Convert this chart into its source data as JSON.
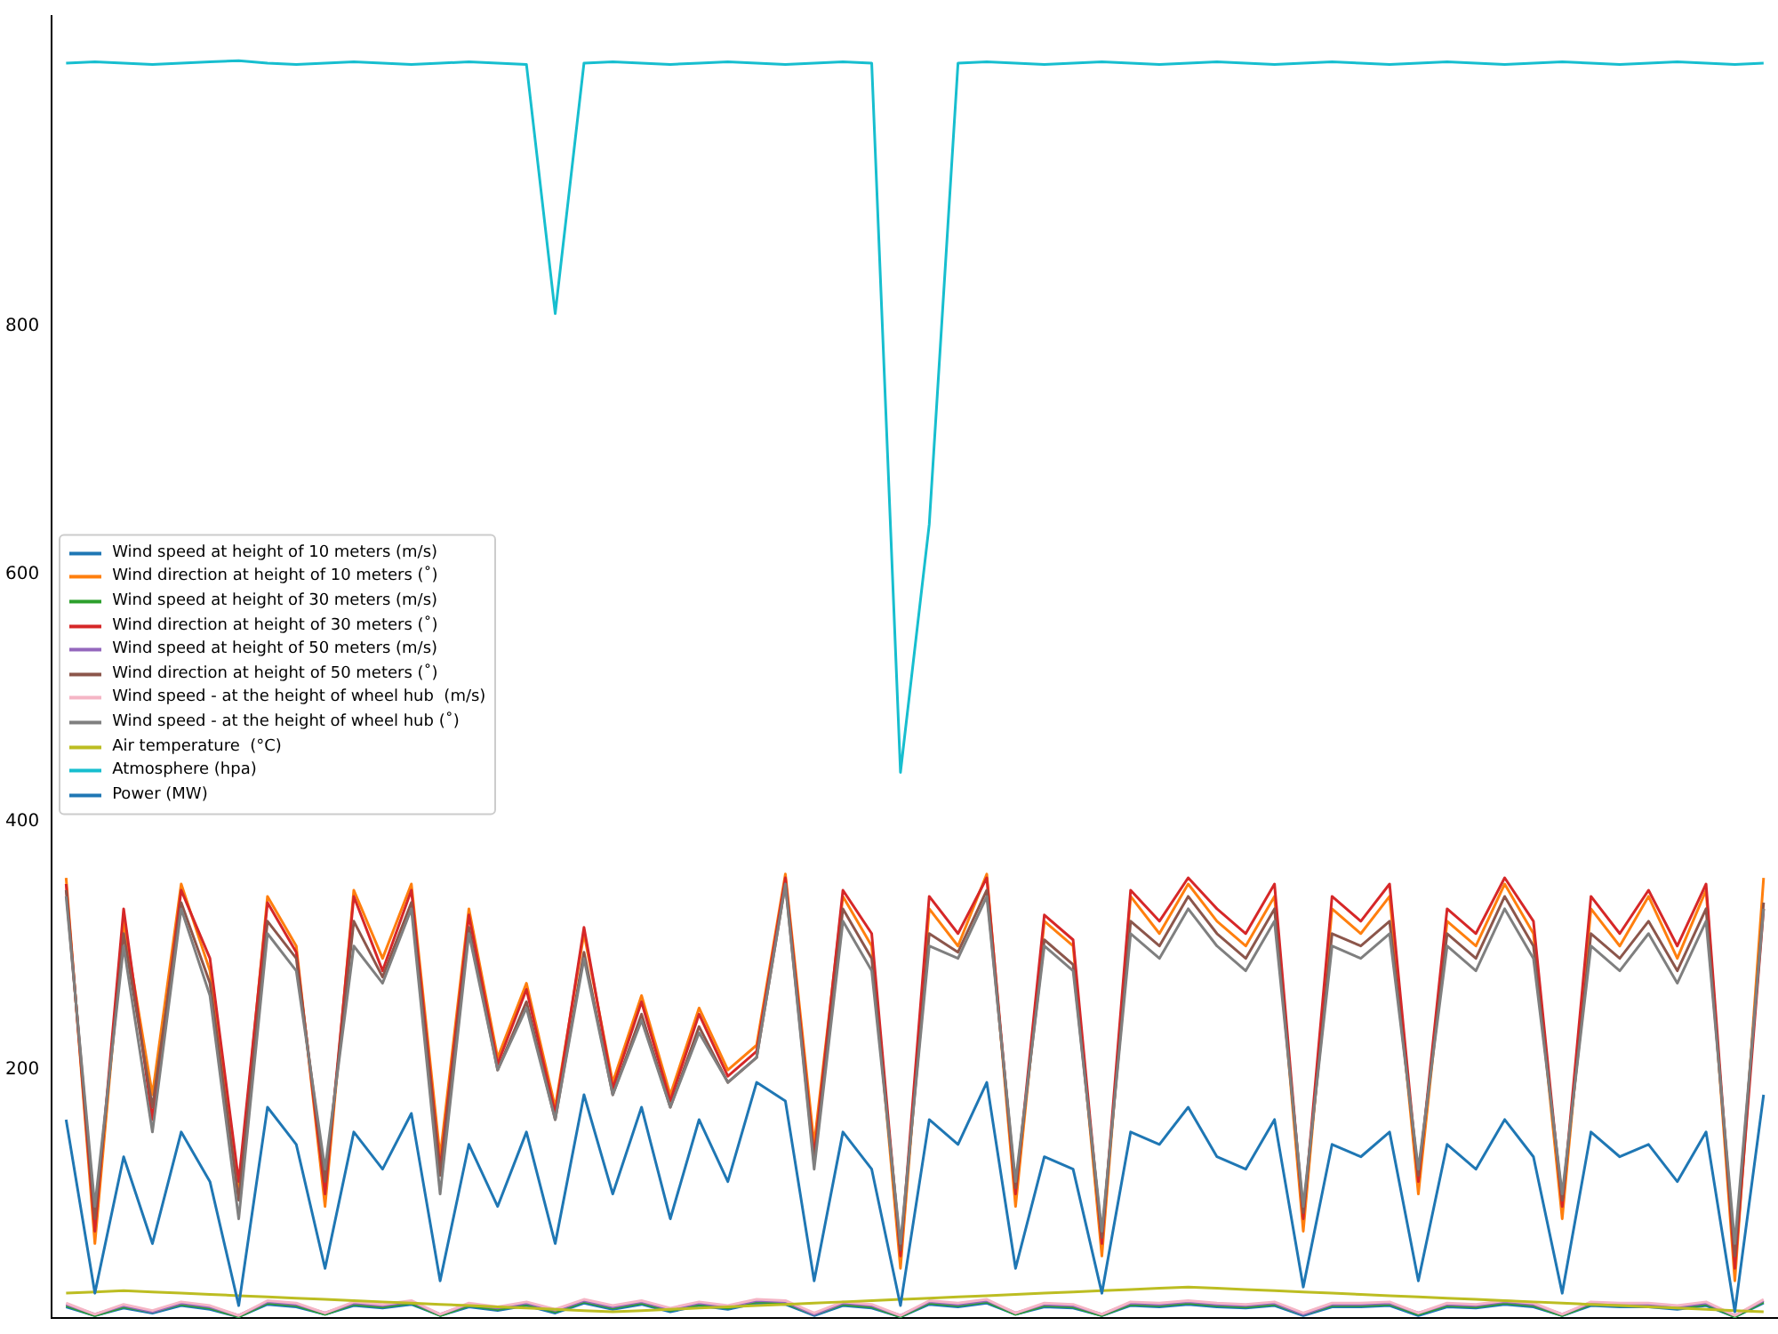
{
  "chart_data": {
    "type": "line",
    "categories": [
      null,
      null,
      null,
      null,
      null,
      null,
      null,
      null,
      null,
      null,
      null,
      null,
      null,
      null,
      null,
      null,
      null,
      null,
      null,
      null,
      null,
      null,
      null,
      null,
      null,
      null,
      null,
      null,
      null,
      null,
      null,
      null,
      null,
      null,
      null,
      null,
      null,
      null,
      null,
      null,
      null,
      null,
      null,
      null,
      null,
      null,
      null,
      null,
      null,
      null,
      null,
      null,
      null,
      null,
      null,
      null,
      null,
      null,
      null,
      null
    ],
    "ylim": [
      0,
      1050
    ],
    "yticks": [
      200,
      400,
      600,
      800
    ],
    "grid": false,
    "legend": "center left",
    "tick_labels": "y",
    "marker": "none",
    "line_style": "solid",
    "series": [
      {
        "name": "Wind speed at height of 10 meters (m/s)",
        "color": "#1f77b4",
        "values": [
          9,
          2,
          8,
          4,
          10,
          7,
          1,
          11,
          9,
          3,
          10,
          8,
          11,
          2,
          9,
          6,
          10,
          4,
          12,
          7,
          11,
          5,
          10,
          7,
          12,
          11,
          2,
          10,
          8,
          1,
          11,
          9,
          12,
          3,
          9,
          8,
          2,
          10,
          9,
          11,
          9,
          8,
          10,
          2,
          9,
          9,
          10,
          2,
          9,
          8,
          11,
          9,
          2,
          10,
          9,
          9,
          7,
          10,
          1,
          12
        ]
      },
      {
        "name": "Wind direction at height of 10 meters (˚)",
        "color": "#ff7f0e",
        "values": [
          355,
          60,
          320,
          180,
          350,
          280,
          100,
          340,
          300,
          90,
          345,
          290,
          350,
          130,
          330,
          210,
          270,
          170,
          310,
          190,
          260,
          180,
          250,
          200,
          220,
          358,
          140,
          340,
          300,
          40,
          330,
          300,
          358,
          90,
          320,
          300,
          50,
          340,
          310,
          350,
          320,
          300,
          340,
          70,
          330,
          310,
          340,
          100,
          320,
          300,
          350,
          310,
          80,
          330,
          300,
          340,
          290,
          345,
          30,
          355
        ]
      },
      {
        "name": "Wind speed at height of 30 meters (m/s)",
        "color": "#2ca02c",
        "values": [
          10,
          2,
          9,
          5,
          11,
          8,
          1,
          12,
          10,
          3,
          11,
          9,
          12,
          2,
          10,
          7,
          11,
          5,
          13,
          8,
          12,
          6,
          11,
          8,
          13,
          12,
          3,
          11,
          9,
          1,
          12,
          10,
          13,
          3,
          10,
          9,
          2,
          11,
          10,
          12,
          10,
          9,
          11,
          3,
          10,
          10,
          11,
          3,
          10,
          9,
          12,
          10,
          2,
          11,
          10,
          10,
          8,
          11,
          1,
          13
        ]
      },
      {
        "name": "Wind direction at height of 30 meters (˚)",
        "color": "#d62728",
        "values": [
          350,
          70,
          330,
          160,
          345,
          290,
          110,
          335,
          295,
          100,
          340,
          280,
          345,
          120,
          325,
          205,
          265,
          165,
          315,
          185,
          255,
          175,
          245,
          195,
          215,
          355,
          130,
          345,
          310,
          50,
          340,
          310,
          355,
          100,
          325,
          305,
          60,
          345,
          320,
          355,
          330,
          310,
          350,
          80,
          340,
          320,
          350,
          110,
          330,
          310,
          355,
          320,
          90,
          340,
          310,
          345,
          300,
          350,
          40,
          330
        ]
      },
      {
        "name": "Wind speed at height of 50 meters (m/s)",
        "color": "#9467bd",
        "values": [
          11,
          3,
          10,
          5,
          12,
          9,
          2,
          13,
          11,
          4,
          12,
          10,
          13,
          3,
          11,
          8,
          12,
          6,
          14,
          9,
          13,
          7,
          12,
          9,
          14,
          13,
          3,
          12,
          10,
          2,
          13,
          11,
          14,
          4,
          11,
          10,
          3,
          12,
          11,
          13,
          11,
          10,
          12,
          3,
          11,
          11,
          12,
          4,
          11,
          10,
          13,
          11,
          3,
          12,
          11,
          11,
          9,
          12,
          2,
          14
        ]
      },
      {
        "name": "Wind direction at height of 50 meters (˚)",
        "color": "#8c564b",
        "values": [
          345,
          80,
          310,
          170,
          335,
          270,
          95,
          320,
          290,
          110,
          320,
          275,
          335,
          115,
          315,
          200,
          255,
          160,
          295,
          180,
          245,
          170,
          235,
          190,
          210,
          350,
          125,
          330,
          290,
          55,
          310,
          295,
          345,
          105,
          305,
          285,
          65,
          320,
          300,
          340,
          310,
          290,
          330,
          85,
          310,
          300,
          320,
          115,
          310,
          290,
          340,
          300,
          95,
          310,
          290,
          320,
          280,
          330,
          50,
          335
        ]
      },
      {
        "name": "Wind speed - at the height of wheel hub  (m/s)",
        "color": "#f5b5c5",
        "values": [
          12,
          3,
          11,
          6,
          13,
          10,
          2,
          14,
          12,
          4,
          13,
          11,
          14,
          3,
          12,
          9,
          13,
          7,
          15,
          10,
          14,
          8,
          13,
          10,
          15,
          14,
          4,
          13,
          11,
          2,
          14,
          12,
          15,
          4,
          12,
          11,
          3,
          13,
          12,
          14,
          12,
          11,
          13,
          4,
          12,
          12,
          13,
          4,
          12,
          11,
          14,
          12,
          3,
          13,
          12,
          12,
          10,
          13,
          2,
          15
        ]
      },
      {
        "name": "Wind speed - at the height of wheel hub (˚)",
        "color": "#7f7f7f",
        "values": [
          340,
          90,
          300,
          150,
          330,
          260,
          80,
          310,
          280,
          120,
          300,
          270,
          330,
          100,
          310,
          200,
          250,
          160,
          290,
          180,
          240,
          170,
          230,
          190,
          210,
          350,
          120,
          320,
          280,
          60,
          300,
          290,
          340,
          110,
          300,
          280,
          70,
          310,
          290,
          330,
          300,
          280,
          320,
          90,
          300,
          290,
          310,
          120,
          300,
          280,
          330,
          290,
          100,
          300,
          280,
          310,
          270,
          320,
          60,
          330
        ]
      },
      {
        "name": "Air temperature  (°C)",
        "color": "#bcbd22",
        "values": [
          20,
          21,
          22,
          21,
          20,
          19,
          18,
          17,
          16,
          15,
          14,
          13,
          12,
          11,
          10,
          9,
          8,
          7,
          6,
          5,
          6,
          7,
          8,
          9,
          10,
          11,
          12,
          13,
          14,
          15,
          16,
          17,
          18,
          19,
          20,
          21,
          22,
          23,
          24,
          25,
          24,
          23,
          22,
          21,
          20,
          19,
          18,
          17,
          16,
          15,
          14,
          13,
          12,
          11,
          10,
          9,
          8,
          7,
          6,
          5
        ]
      },
      {
        "name": "Atmosphere (hpa)",
        "color": "#17becf",
        "values": [
          1012,
          1013,
          1012,
          1011,
          1012,
          1013,
          1014,
          1012,
          1011,
          1012,
          1013,
          1012,
          1011,
          1012,
          1013,
          1012,
          1011,
          810,
          1012,
          1013,
          1012,
          1011,
          1012,
          1013,
          1012,
          1011,
          1012,
          1013,
          1012,
          440,
          640,
          1012,
          1013,
          1012,
          1011,
          1012,
          1013,
          1012,
          1011,
          1012,
          1013,
          1012,
          1011,
          1012,
          1013,
          1012,
          1011,
          1012,
          1013,
          1012,
          1011,
          1012,
          1013,
          1012,
          1011,
          1012,
          1013,
          1012,
          1011,
          1012
        ]
      },
      {
        "name": "Power (MW)",
        "color": "#1f77b4",
        "values": [
          160,
          20,
          130,
          60,
          150,
          110,
          10,
          170,
          140,
          40,
          150,
          120,
          165,
          30,
          140,
          90,
          150,
          60,
          180,
          100,
          170,
          80,
          160,
          110,
          190,
          175,
          30,
          150,
          120,
          10,
          160,
          140,
          190,
          40,
          130,
          120,
          20,
          150,
          140,
          170,
          130,
          120,
          160,
          25,
          140,
          130,
          150,
          30,
          140,
          120,
          160,
          130,
          20,
          150,
          130,
          140,
          110,
          150,
          5,
          180
        ]
      }
    ]
  }
}
